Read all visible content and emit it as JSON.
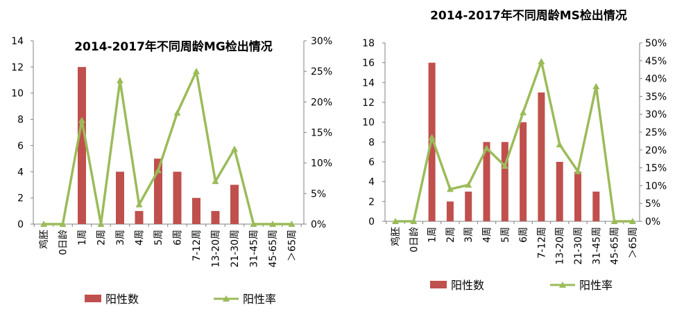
{
  "chart_data": [
    {
      "type": "bar",
      "title": "2014-2017年不同周龄MG检出情况",
      "categories": [
        "鸡胚",
        "0日龄",
        "1周",
        "2周",
        "3周",
        "4周",
        "5周",
        "6周",
        "7-12周",
        "13-20周",
        "21-30周",
        "31-45周",
        "45-65周",
        "＞65周"
      ],
      "series": [
        {
          "name": "阳性数",
          "type": "bar",
          "axis": "left",
          "color": "#C0504D",
          "values": [
            0,
            0,
            12,
            0,
            4,
            1,
            5,
            4,
            2,
            1,
            3,
            0,
            0,
            0
          ]
        },
        {
          "name": "阳性率",
          "type": "line",
          "axis": "right",
          "color": "#9BBB59",
          "marker": "triangle",
          "values": [
            0,
            0,
            17,
            0,
            23.5,
            3.2,
            8.8,
            18.2,
            25,
            7,
            12.3,
            0,
            0,
            0
          ]
        }
      ],
      "y_left": {
        "ylim": [
          0,
          14
        ],
        "ticks": [
          0,
          2,
          4,
          6,
          8,
          10,
          12,
          14
        ]
      },
      "y_right": {
        "ylim": [
          0,
          30
        ],
        "ticks": [
          0,
          5,
          10,
          15,
          20,
          25,
          30
        ],
        "unit": "%"
      },
      "legend": "bottom"
    },
    {
      "type": "bar",
      "title": "2014-2017年不同周龄MS检出情况",
      "categories": [
        "鸡胚",
        "0日龄",
        "1周",
        "2周",
        "3周",
        "4周",
        "5周",
        "6周",
        "7-12周",
        "13-20周",
        "21-30周",
        "31-45周",
        "45-65周",
        "＞65周"
      ],
      "series": [
        {
          "name": "阳性数",
          "type": "bar",
          "axis": "left",
          "color": "#C0504D",
          "values": [
            0,
            0,
            16,
            2,
            3,
            8,
            8,
            10,
            13,
            6,
            5,
            3,
            0,
            0
          ]
        },
        {
          "name": "阳性率",
          "type": "line",
          "axis": "right",
          "color": "#9BBB59",
          "marker": "triangle",
          "values": [
            0,
            0,
            23.5,
            9,
            10.2,
            20.5,
            15.5,
            30.5,
            44.8,
            21.5,
            14,
            37.8,
            0,
            0
          ]
        }
      ],
      "y_left": {
        "ylim": [
          0,
          18
        ],
        "ticks": [
          0,
          2,
          4,
          6,
          8,
          10,
          12,
          14,
          16,
          18
        ]
      },
      "y_right": {
        "ylim": [
          0,
          50
        ],
        "ticks": [
          0,
          5,
          10,
          15,
          20,
          25,
          30,
          35,
          40,
          45,
          50
        ],
        "unit": "%"
      },
      "legend": "bottom"
    }
  ]
}
